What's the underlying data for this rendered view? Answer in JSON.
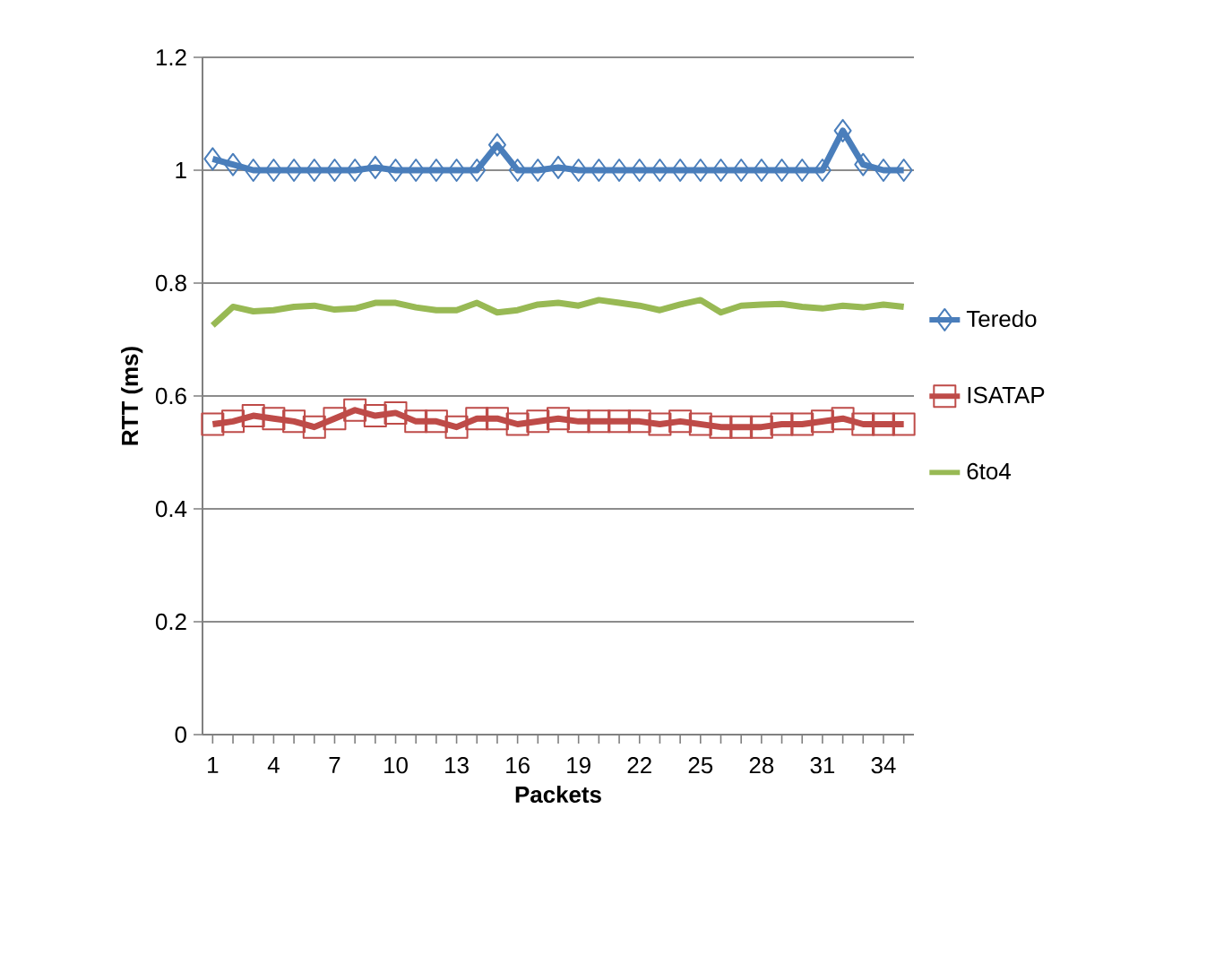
{
  "chart_data": {
    "type": "line",
    "xlabel": "Packets",
    "ylabel": "RTT (ms)",
    "categories": [
      "1",
      null,
      null,
      "4",
      null,
      null,
      "7",
      null,
      null,
      "10",
      null,
      null,
      "13",
      null,
      null,
      "16",
      null,
      null,
      "19",
      null,
      null,
      "22",
      null,
      null,
      "25",
      null,
      null,
      "28",
      null,
      null,
      "31",
      null,
      null,
      "34",
      null
    ],
    "ylim": [
      0,
      1.2
    ],
    "yticks": [
      0,
      0.2,
      0.4,
      0.6,
      0.8,
      1,
      1.2
    ],
    "grid": "y",
    "legend": "right",
    "series": [
      {
        "name": "Teredo",
        "color": "#4a7ebb",
        "marker": "diamond",
        "values": [
          1.02,
          1.01,
          1.0,
          1.0,
          1.0,
          1.0,
          1.0,
          1.0,
          1.005,
          1.0,
          1.0,
          1.0,
          1.0,
          1.0,
          1.045,
          1.0,
          1.0,
          1.005,
          1.0,
          1.0,
          1.0,
          1.0,
          1.0,
          1.0,
          1.0,
          1.0,
          1.0,
          1.0,
          1.0,
          1.0,
          1.0,
          1.07,
          1.01,
          1.0,
          1.0
        ]
      },
      {
        "name": "ISATAP",
        "color": "#be4b48",
        "marker": "square",
        "values": [
          0.55,
          0.555,
          0.565,
          0.56,
          0.555,
          0.545,
          0.56,
          0.575,
          0.565,
          0.57,
          0.555,
          0.555,
          0.545,
          0.56,
          0.56,
          0.55,
          0.555,
          0.56,
          0.555,
          0.555,
          0.555,
          0.555,
          0.55,
          0.555,
          0.55,
          0.545,
          0.545,
          0.545,
          0.55,
          0.55,
          0.555,
          0.56,
          0.55,
          0.55,
          0.55
        ]
      },
      {
        "name": "6to4",
        "color": "#98b954",
        "marker": "none",
        "values": [
          0.725,
          0.758,
          0.75,
          0.752,
          0.758,
          0.76,
          0.753,
          0.755,
          0.765,
          0.765,
          0.757,
          0.752,
          0.752,
          0.765,
          0.748,
          0.752,
          0.762,
          0.765,
          0.76,
          0.77,
          0.765,
          0.76,
          0.752,
          0.762,
          0.77,
          0.748,
          0.76,
          0.762,
          0.763,
          0.758,
          0.755,
          0.76,
          0.757,
          0.762,
          0.758
        ]
      }
    ]
  }
}
